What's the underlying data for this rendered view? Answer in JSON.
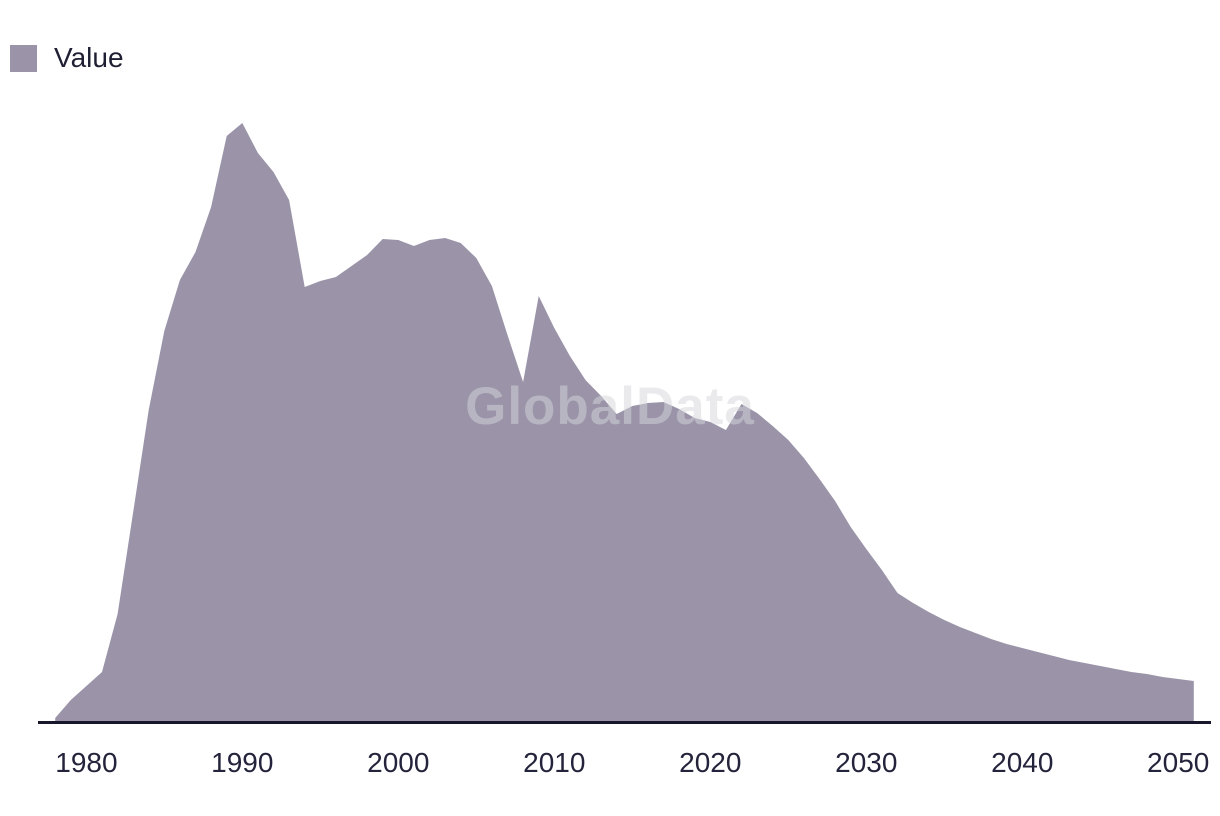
{
  "legend": {
    "label": "Value",
    "swatch_color": "#9b94a9"
  },
  "watermark_text": "GlobalData",
  "colors": {
    "area_fill": "#9b94a9",
    "axis_line": "#17172c",
    "tick_text": "#23233c",
    "legend_text": "#1f1f33",
    "watermark": "#d6d6dc"
  },
  "chart_data": {
    "type": "area",
    "title": "",
    "xlabel": "",
    "ylabel": "",
    "grid": false,
    "y_axis_visible": false,
    "legend_position": "top-left",
    "xlim": [
      1976.9,
      2052.1
    ],
    "ylim": [
      0,
      620
    ],
    "x_ticks": [
      "1980",
      "1990",
      "2000",
      "2010",
      "2020",
      "2030",
      "2040",
      "2050"
    ],
    "x_tick_years": [
      1980,
      1990,
      2000,
      2010,
      2020,
      2030,
      2040,
      2050
    ],
    "series": [
      {
        "name": "Value",
        "x": [
          1978,
          1979,
          1980,
          1981,
          1982,
          1983,
          1984,
          1985,
          1986,
          1987,
          1988,
          1989,
          1990,
          1991,
          1992,
          1993,
          1994,
          1995,
          1996,
          1997,
          1998,
          1999,
          2000,
          2001,
          2002,
          2003,
          2004,
          2005,
          2006,
          2007,
          2008,
          2009,
          2010,
          2011,
          2012,
          2013,
          2014,
          2015,
          2016,
          2017,
          2018,
          2019,
          2020,
          2021,
          2022,
          2023,
          2024,
          2025,
          2026,
          2027,
          2028,
          2029,
          2030,
          2031,
          2032,
          2033,
          2034,
          2035,
          2036,
          2037,
          2038,
          2039,
          2040,
          2041,
          2042,
          2043,
          2044,
          2045,
          2046,
          2047,
          2048,
          2049,
          2050,
          2051
        ],
        "values": [
          4,
          22,
          36,
          50,
          108,
          210,
          312,
          391,
          442,
          470,
          515,
          586,
          599,
          569,
          550,
          522,
          435,
          441,
          445,
          456,
          467,
          483,
          482,
          476,
          482,
          484,
          479,
          464,
          436,
          387,
          340,
          426,
          394,
          366,
          342,
          326,
          308,
          316,
          319,
          320,
          313,
          304,
          300,
          292,
          318,
          309,
          296,
          282,
          264,
          243,
          221,
          195,
          173,
          152,
          129,
          119,
          110,
          102,
          95,
          89,
          83,
          78,
          74,
          70,
          66,
          62,
          59,
          56,
          53,
          50,
          48,
          45,
          43,
          41
        ]
      }
    ]
  }
}
